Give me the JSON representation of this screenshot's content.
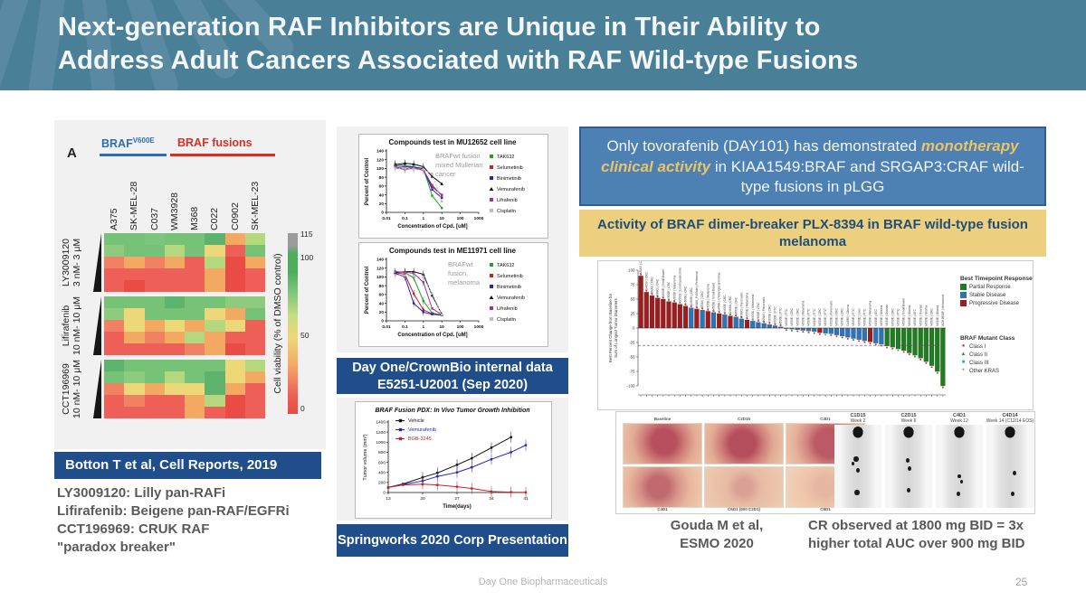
{
  "slide": {
    "title_line1": "Next-generation RAF Inhibitors are Unique in Their Ability to",
    "title_line2": "Address Adult Cancers Associated with RAF Wild-type Fusions",
    "footer": "Day One Biopharmaceuticals",
    "page_number": "25"
  },
  "left_panel": {
    "panel_label": "A",
    "group1_label": "BRAF",
    "group1_sup": "V600E",
    "group2_label": "BRAF fusions",
    "group1_color": "#2f6db5",
    "group2_color": "#d93025",
    "columns": [
      "A375",
      "SK-MEL-28",
      "C037",
      "WM3928",
      "M368",
      "C022",
      "C0902",
      "SK-MEL-23"
    ],
    "rows": [
      {
        "name": "LY3009120",
        "dose": "3 nM- 3 μM"
      },
      {
        "name": "Lifirafenib",
        "dose": "10 nM- 10 μM"
      },
      {
        "name": "CCT196969",
        "dose": "10 nM- 10 μM"
      }
    ],
    "colorbar": {
      "label": "Cell viability (% of DMSO control)",
      "ticks": [
        "115",
        "100",
        "50",
        "0"
      ]
    },
    "caption": "Botton T et al, Cell Reports, 2019",
    "notes": [
      "LY3009120: Lilly pan-RAFi",
      "Lifirafenib: Beigene pan-RAF/EGFRi",
      "CCT196969: CRUK RAF",
      "\"paradox breaker\""
    ],
    "heatmap": [
      [
        [
          "#76c276",
          "#76c276",
          "#7cc57c",
          "#76c276",
          "#76c276",
          "#5db36b",
          "#f4a962",
          "#b5d77e"
        ],
        [
          "#8fcb7e",
          "#76c276",
          "#76c276",
          "#b5d77e",
          "#76c276",
          "#ecd878",
          "#ed5f57",
          "#76c276"
        ],
        [
          "#f08162",
          "#f4a962",
          "#f08162",
          "#f4a962",
          "#ed5f57",
          "#b5d77e",
          "#ea4b44",
          "#f4a962"
        ],
        [
          "#ed5f57",
          "#ed5f57",
          "#ed5f57",
          "#ed5f57",
          "#ed5f57",
          "#f4a962",
          "#ea4b44",
          "#ed5f57"
        ],
        [
          "#ed5f57",
          "#ea4b44",
          "#ed5f57",
          "#ed5f57",
          "#ed5f57",
          "#f4a962",
          "#ea4b44",
          "#ed5f57"
        ]
      ],
      [
        [
          "#76c276",
          "#76c276",
          "#76c276",
          "#5db36b",
          "#76c276",
          "#76c276",
          "#8fcb7e",
          "#8fcb7e"
        ],
        [
          "#8fcb7e",
          "#ecd878",
          "#76c276",
          "#76c276",
          "#76c276",
          "#ecd878",
          "#f4a962",
          "#76c276"
        ],
        [
          "#f08162",
          "#ecd878",
          "#f4a962",
          "#ecd878",
          "#f4a962",
          "#b5d77e",
          "#ecd878",
          "#ed5f57"
        ],
        [
          "#ed5f57",
          "#f4a962",
          "#f08162",
          "#f4a962",
          "#b5d77e",
          "#f4a962",
          "#ed5f57",
          "#ed5f57"
        ],
        [
          "#ed5f57",
          "#ed5f57",
          "#ed5f57",
          "#ed5f57",
          "#f08162",
          "#f4a962",
          "#ea4b44",
          "#ed5f57"
        ]
      ],
      [
        [
          "#5db36b",
          "#76c276",
          "#76c276",
          "#76c276",
          "#76c276",
          "#76c276",
          "#ecd878",
          "#b5d77e"
        ],
        [
          "#76c276",
          "#8fcb7e",
          "#76c276",
          "#b5d77e",
          "#76c276",
          "#5db36b",
          "#ecd878",
          "#f4a962"
        ],
        [
          "#f08162",
          "#ecd878",
          "#f4a962",
          "#ecd878",
          "#ecd878",
          "#5db36b",
          "#f4a962",
          "#ed5f57"
        ],
        [
          "#ed5f57",
          "#f08162",
          "#ed5f57",
          "#ed5f57",
          "#f4a962",
          "#b5d77e",
          "#ea4b44",
          "#ed5f57"
        ],
        [
          "#ed5f57",
          "#ed5f57",
          "#ed5f57",
          "#ed5f57",
          "#f4a962",
          "#ed5f57",
          "#ea4b44",
          "#ed5f57"
        ]
      ]
    ]
  },
  "middle_panel": {
    "source_box1": [
      "Day One/CrownBio internal data",
      "E5251-U2001 (Sep 2020)"
    ],
    "source_box2": "Springworks 2020 Corp Presentation"
  },
  "right_panel": {
    "headline_pre": "Only tovorafenib (DAY101) has demonstrated ",
    "headline_highlight": "monotherapy clinical activity",
    "headline_post": " in KIAA1549:BRAF and SRGAP3:CRAF wild-type fusions in pLGG",
    "yellow_title": "Activity of BRAF dimer-breaker PLX-8394 in BRAF wild-type fusion melanoma",
    "citation": [
      "Gouda M et al,",
      "ESMO 2020"
    ],
    "cr_note": [
      "CR observed at 1800 mg BID = 3x",
      "higher total AUC over 900 mg BID"
    ],
    "photo_labels_top": [
      "Baseline",
      "C2D15",
      "C3D1"
    ],
    "photo_labels_bottom": [
      "C4D1",
      "C6D1 (900 C2D1)",
      "C8D1"
    ],
    "pet_labels": [
      [
        "C1D15",
        "Week 2"
      ],
      [
        "C2D15",
        "Week 6"
      ],
      [
        "C4D1",
        "Week 12"
      ],
      [
        "C4D14",
        "Week 14 (C12/14 EOS)"
      ]
    ]
  },
  "chart_data": [
    {
      "type": "line",
      "title": "Compounds test in MU12652 cell line",
      "annotation_lines": [
        "BRAFwt fusion",
        "mixed Mullerian",
        "cancer"
      ],
      "xlabel": "Concentration of Cpd. [uM]",
      "ylabel": "Percent of Control",
      "xscale": "log",
      "xticks": [
        0.01,
        0.1,
        1,
        10,
        100,
        1000
      ],
      "xtick_labels": [
        "0.01",
        "0.1",
        "1",
        "10",
        "100",
        "1000"
      ],
      "ylim": [
        0,
        140
      ],
      "yticks": [
        0,
        20,
        40,
        60,
        80,
        100,
        120,
        140
      ],
      "x": [
        0.03,
        0.1,
        0.3,
        1,
        3,
        10
      ],
      "series": [
        {
          "name": "TAK632",
          "color": "#22a022",
          "marker": "square",
          "values": [
            110,
            107,
            104,
            100,
            38,
            10
          ]
        },
        {
          "name": "Selumetinib",
          "color": "#c62222",
          "marker": "square",
          "values": [
            101,
            98,
            100,
            96,
            58,
            40
          ]
        },
        {
          "name": "Binimetinib",
          "color": "#2323b8",
          "marker": "square",
          "values": [
            106,
            104,
            103,
            99,
            52,
            33
          ]
        },
        {
          "name": "Vemurafenib",
          "color": "#111111",
          "marker": "triangle",
          "values": [
            109,
            112,
            110,
            104,
            82,
            65
          ]
        },
        {
          "name": "Lifrafenib",
          "color": "#993399",
          "marker": "square",
          "values": [
            103,
            100,
            101,
            97,
            62,
            38
          ]
        },
        {
          "name": "Cisplatin",
          "color": "#bdbdbd",
          "marker": "square",
          "dash": true,
          "values": [
            100,
            100,
            99,
            98,
            88,
            25
          ]
        }
      ]
    },
    {
      "type": "line",
      "title": "Compounds test in ME11971 cell line",
      "annotation_lines": [
        "BRAFwt",
        "fusion,",
        "melanoma"
      ],
      "xlabel": "Concentration of Cpd. [uM]",
      "ylabel": "Percent of Control",
      "xscale": "log",
      "xticks": [
        0.01,
        0.1,
        1,
        10,
        100,
        1000
      ],
      "xtick_labels": [
        "0.01",
        "0.1",
        "1",
        "10",
        "100",
        "1000"
      ],
      "ylim": [
        0,
        140
      ],
      "yticks": [
        0,
        20,
        40,
        60,
        80,
        100,
        120,
        140
      ],
      "x": [
        0.03,
        0.1,
        0.3,
        1,
        3,
        10
      ],
      "series": [
        {
          "name": "TAK632",
          "color": "#22a022",
          "marker": "square",
          "values": [
            112,
            110,
            98,
            45,
            18,
            13
          ]
        },
        {
          "name": "Selumetinib",
          "color": "#c62222",
          "marker": "square",
          "values": [
            110,
            106,
            62,
            25,
            16,
            13
          ]
        },
        {
          "name": "Binimetinib",
          "color": "#2323b8",
          "marker": "square",
          "values": [
            108,
            100,
            40,
            20,
            15,
            13
          ]
        },
        {
          "name": "Vemurafenib",
          "color": "#111111",
          "marker": "triangle",
          "values": [
            110,
            112,
            112,
            106,
            58,
            15
          ]
        },
        {
          "name": "Lifrafenib",
          "color": "#993399",
          "marker": "square",
          "values": [
            112,
            111,
            108,
            88,
            28,
            14
          ]
        },
        {
          "name": "Cisplatin",
          "color": "#bdbdbd",
          "marker": "square",
          "dash": true,
          "values": [
            104,
            103,
            102,
            99,
            62,
            14
          ]
        }
      ]
    },
    {
      "type": "line",
      "title": "BRAF Fusion PDX: In Vivo Tumor Growth Inhibition",
      "xlabel": "Time(days)",
      "ylabel": "Tumor volume (mm³)",
      "xticks": [
        13,
        20,
        27,
        34,
        41
      ],
      "ylim": [
        0,
        1400
      ],
      "yticks": [
        0,
        200,
        400,
        600,
        800,
        1000,
        1200,
        1400
      ],
      "series": [
        {
          "name": "Vehicle",
          "color": "#111111",
          "x": [
            13,
            16,
            20,
            23,
            27,
            30,
            34,
            38
          ],
          "values": [
            100,
            170,
            300,
            390,
            550,
            680,
            890,
            1100
          ]
        },
        {
          "name": "Vemurafenib",
          "color": "#2323b8",
          "x": [
            13,
            16,
            20,
            23,
            27,
            30,
            34,
            38,
            41
          ],
          "values": [
            100,
            160,
            230,
            320,
            400,
            500,
            660,
            800,
            940
          ]
        },
        {
          "name": "BGB-3245",
          "color": "#c62222",
          "x": [
            13,
            16,
            20,
            23,
            27,
            30,
            34,
            38,
            41
          ],
          "values": [
            100,
            150,
            165,
            150,
            115,
            80,
            20,
            8,
            5
          ]
        }
      ]
    },
    {
      "type": "bar",
      "title": "PLX-8394 waterfall",
      "ylabel_lines": [
        "Best Percent Change from Baseline for",
        "Sum of Longest Tumor Diameters"
      ],
      "yticks": [
        100,
        75,
        50,
        25,
        0,
        -25,
        -50,
        -75,
        -100
      ],
      "threshold": -30,
      "legend_response": {
        "title": "Best Timepoint Response",
        "items": [
          {
            "label": "Partial Response",
            "color": "#1e7d1e"
          },
          {
            "label": "Stable Disease",
            "color": "#2e74b5"
          },
          {
            "label": "Progressive Disease",
            "color": "#9e1b1e"
          }
        ]
      },
      "legend_class": {
        "title": "BRAF Mutant Class",
        "items": [
          {
            "label": "Class I",
            "color": "#cc3333",
            "marker": "●"
          },
          {
            "label": "Class II",
            "color": "#2e8b2e",
            "marker": "▲"
          },
          {
            "label": "Class III",
            "color": "#2aa8c4",
            "marker": "■"
          },
          {
            "label": "Other KRAS",
            "color": "#8855bb",
            "marker": "+"
          }
        ]
      },
      "bars": [
        {
          "v": 90,
          "c": "PD",
          "label": "KRAS | CRC"
        },
        {
          "v": 62,
          "c": "PD",
          "label": "G469V | CRC"
        },
        {
          "v": 56,
          "c": "PD",
          "label": "KRAS | CRC"
        },
        {
          "v": 52,
          "c": "PD",
          "label": "KRAS | CRC"
        },
        {
          "v": 50,
          "c": "PD",
          "label": "V600E | Small Bowel"
        },
        {
          "v": 46,
          "c": "PD",
          "label": "V600E | CRC"
        },
        {
          "v": 44,
          "c": "PD",
          "label": "V600K | Melanoma"
        },
        {
          "v": 41,
          "c": "PD",
          "label": "G501E | Leiomyosarcoma"
        },
        {
          "v": 38,
          "c": "PD",
          "label": "V600E | CRC"
        },
        {
          "v": 35,
          "c": "SD",
          "label": "G469R | CRC"
        },
        {
          "v": 33,
          "c": "PD",
          "label": "N486_P490del | Peritoneal"
        },
        {
          "v": 31,
          "c": "SD",
          "label": "KRAS | CRC"
        },
        {
          "v": 29,
          "c": "PD",
          "label": "V600E | Melanoma"
        },
        {
          "v": 27,
          "c": "SD",
          "label": "V600E | Small Bowel"
        },
        {
          "v": 25,
          "c": "PD",
          "label": "G469R | Cholangiocarcinoma"
        },
        {
          "v": 23,
          "c": "SD",
          "label": "V600E | CRC"
        },
        {
          "v": 21,
          "c": "PD",
          "label": "G466A | CRC"
        },
        {
          "v": 19,
          "c": "SD",
          "label": "V600E | CRC"
        },
        {
          "v": 16,
          "c": "SD",
          "label": "KRAS | Pancreatic"
        },
        {
          "v": 14,
          "c": "PD",
          "label": "V600E | Melanoma"
        },
        {
          "v": 12,
          "c": "SD",
          "label": "V600L | Melanoma"
        },
        {
          "v": 10,
          "c": "SD",
          "label": "V600E | CRC"
        },
        {
          "v": 8,
          "c": "SD",
          "label": "KRAS | Pancreatic"
        },
        {
          "v": 6,
          "c": "SD",
          "label": "V600E | CRC"
        },
        {
          "v": 4,
          "c": "SD",
          "label": "V600E | PTC"
        },
        {
          "v": 2,
          "c": "SD",
          "label": "V600E | PTC"
        },
        {
          "v": -1,
          "c": "SD",
          "label": "V600E | PTC"
        },
        {
          "v": -2,
          "c": "SD",
          "label": "V600E | CRC"
        },
        {
          "v": -3,
          "c": "SD",
          "label": "V600E | CRC"
        },
        {
          "v": -4,
          "c": "SD",
          "label": "V600E | Melanoma"
        },
        {
          "v": -5,
          "c": "SD",
          "label": "V600E | PTC"
        },
        {
          "v": -6,
          "c": "SD",
          "label": "V600E | PTC"
        },
        {
          "v": -8,
          "c": "PD",
          "label": "V600E | CRC"
        },
        {
          "v": -9,
          "c": "SD",
          "label": "V600E | PTC"
        },
        {
          "v": -10,
          "c": "SD",
          "label": "V600E | Pancreatic"
        },
        {
          "v": -12,
          "c": "SD",
          "label": "V600E | CRC"
        },
        {
          "v": -14,
          "c": "SD",
          "label": "V600E | CRC"
        },
        {
          "v": -16,
          "c": "SD",
          "label": "G469R | Glioma"
        },
        {
          "v": -18,
          "c": "SD",
          "label": "V600E | PTC"
        },
        {
          "v": -20,
          "c": "SD",
          "label": "V600E | Liver"
        },
        {
          "v": -22,
          "c": "SD",
          "label": "V600E | PTC"
        },
        {
          "v": -24,
          "c": "PD",
          "label": "V600K | Melanoma"
        },
        {
          "v": -26,
          "c": "SD",
          "label": "V600E | ATC"
        },
        {
          "v": -28,
          "c": "SD",
          "label": "V600E | Glioma"
        },
        {
          "v": -31,
          "c": "PR",
          "label": "V600E | Ovarian"
        },
        {
          "v": -33,
          "c": "PR",
          "label": "V600E | CRC"
        },
        {
          "v": -36,
          "c": "PR",
          "label": "V600E | PTC"
        },
        {
          "v": -39,
          "c": "PR",
          "label": "V600E | Small Bowel"
        },
        {
          "v": -43,
          "c": "PR",
          "label": "V600E | Glioma"
        },
        {
          "v": -47,
          "c": "PR",
          "label": "V600E | ATC"
        },
        {
          "v": -52,
          "c": "PR",
          "label": "V600E | Ovarian"
        },
        {
          "v": -58,
          "c": "PR",
          "label": "V600E | Glioma"
        },
        {
          "v": -65,
          "c": "PR",
          "label": "V600E | CRC"
        },
        {
          "v": -75,
          "c": "PR",
          "label": "V600E | Glioma"
        },
        {
          "v": -100,
          "c": "PR",
          "label": "AGK:BRAF | Melanoma"
        }
      ]
    }
  ]
}
